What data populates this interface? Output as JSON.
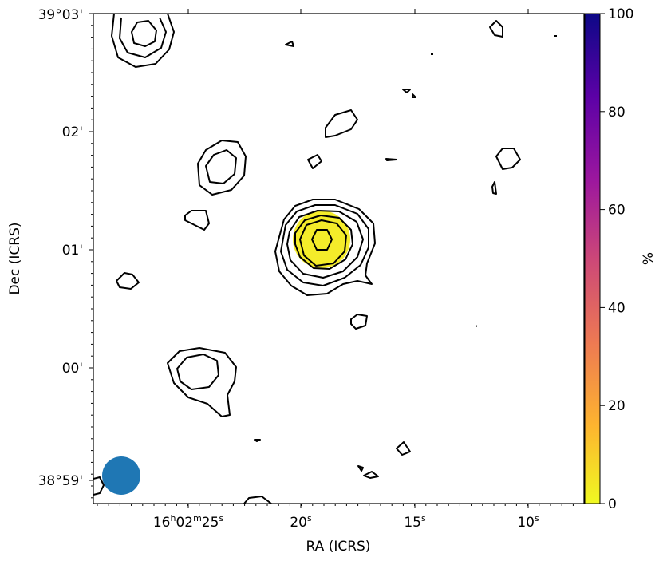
{
  "chart_data": {
    "type": "contour",
    "xlabel": "RA (ICRS)",
    "ylabel": "Dec (ICRS)",
    "colorbar_label": "%",
    "colorbar_ticks": [
      "0",
      "20",
      "40",
      "60",
      "80",
      "100"
    ],
    "colorbar_range": [
      0,
      100
    ],
    "colormap": [
      "#f0f921",
      "#fdb42f",
      "#ed7953",
      "#cc4778",
      "#9c179e",
      "#5c01a6",
      "#0d0887"
    ],
    "x_tick_labels": [
      {
        "main": "16",
        "sup1": "h",
        "mid": "02",
        "sup2": "m",
        "end": "25",
        "sup3": "s"
      },
      {
        "end": "20",
        "sup3": "s"
      },
      {
        "end": "15",
        "sup3": "s"
      },
      {
        "end": "10",
        "sup3": "s"
      }
    ],
    "y_tick_labels": [
      "39°03'",
      "02'",
      "01'",
      "00'",
      "38°59'"
    ],
    "source_fill_color": "#f4ec2a",
    "beam_color": "#1f77b4",
    "contour_color": "#000000"
  }
}
